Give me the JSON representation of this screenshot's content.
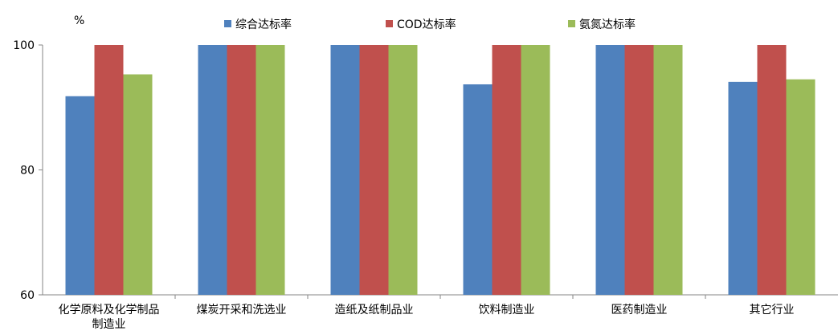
{
  "chart_data": {
    "type": "bar",
    "ylabel": "%",
    "ylim": [
      60,
      100
    ],
    "yticks": [
      60,
      80,
      100
    ],
    "grid": false,
    "legend_position": "top",
    "categories": [
      [
        "化学原料及化学制品",
        "制造业"
      ],
      [
        "煤炭开采和洗选业"
      ],
      [
        "造纸及纸制品业"
      ],
      [
        "饮料制造业"
      ],
      [
        "医药制造业"
      ],
      [
        "其它行业"
      ]
    ],
    "series": [
      {
        "name": "综合达标率",
        "color": "#4F81BD",
        "values": [
          91.8,
          100,
          100,
          93.7,
          100,
          94.1
        ]
      },
      {
        "name": "COD达标率",
        "color": "#C0504D",
        "values": [
          100,
          100,
          100,
          100,
          100,
          100
        ]
      },
      {
        "name": "氨氮达标率",
        "color": "#9BBB59",
        "values": [
          95.3,
          100,
          100,
          100,
          100,
          94.5
        ]
      }
    ]
  }
}
